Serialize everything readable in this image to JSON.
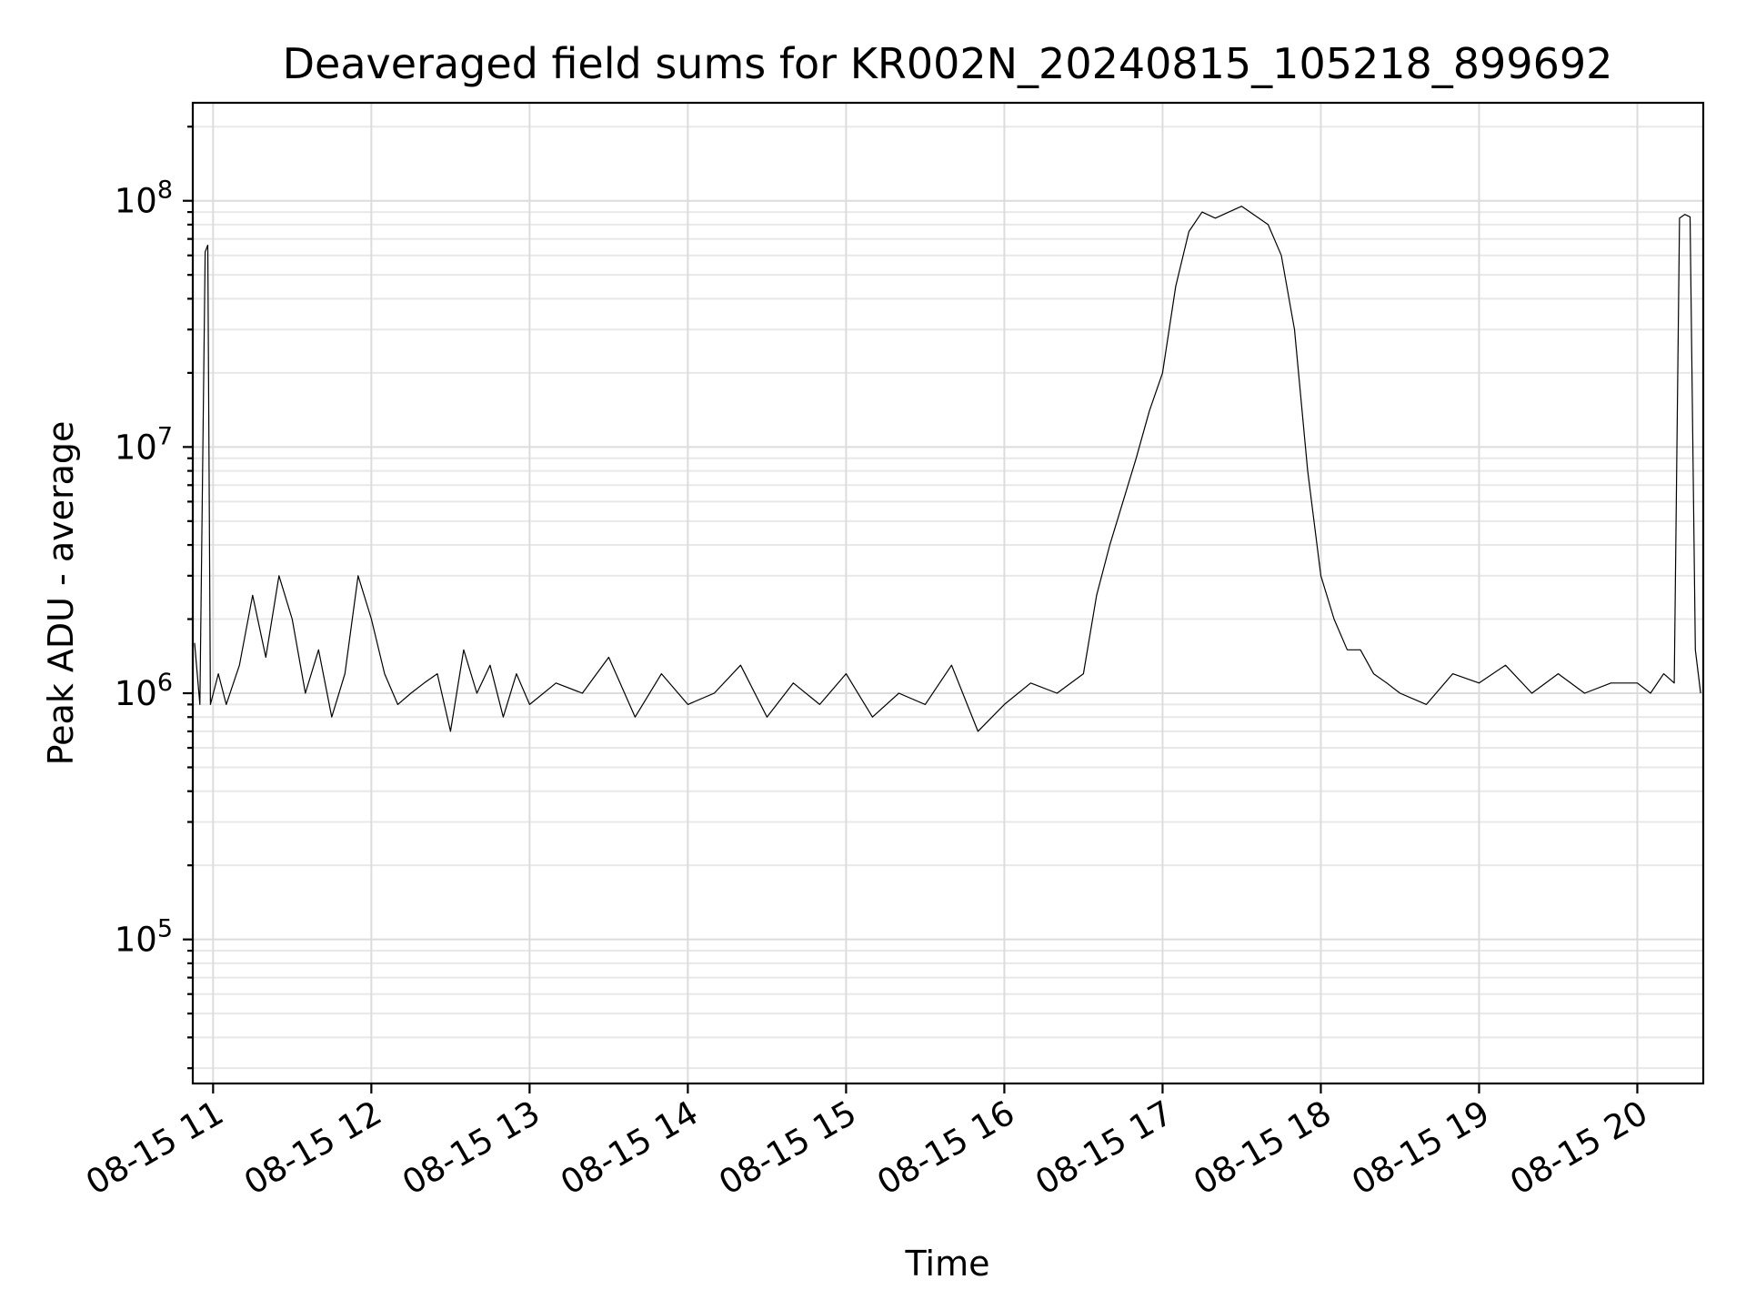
{
  "chart_data": {
    "type": "line",
    "title": "Deaveraged field sums for KR002N_20240815_105218_899692",
    "xlabel": "Time",
    "ylabel": "Peak ADU - average",
    "x_scale": "time",
    "y_scale": "log",
    "xlim": [
      "2024-08-15T10:52:18",
      "2024-08-15T20:25:00"
    ],
    "ylim": [
      26000,
      250000000
    ],
    "x_ticks": [
      {
        "value": "2024-08-15T11:00",
        "label": "08-15 11"
      },
      {
        "value": "2024-08-15T12:00",
        "label": "08-15 12"
      },
      {
        "value": "2024-08-15T13:00",
        "label": "08-15 13"
      },
      {
        "value": "2024-08-15T14:00",
        "label": "08-15 14"
      },
      {
        "value": "2024-08-15T15:00",
        "label": "08-15 15"
      },
      {
        "value": "2024-08-15T16:00",
        "label": "08-15 16"
      },
      {
        "value": "2024-08-15T17:00",
        "label": "08-15 17"
      },
      {
        "value": "2024-08-15T18:00",
        "label": "08-15 18"
      },
      {
        "value": "2024-08-15T19:00",
        "label": "08-15 19"
      },
      {
        "value": "2024-08-15T20:00",
        "label": "08-15 20"
      }
    ],
    "y_ticks": [
      {
        "value": 100000,
        "base": "10",
        "exp": "5"
      },
      {
        "value": 1000000,
        "base": "10",
        "exp": "6"
      },
      {
        "value": 10000000,
        "base": "10",
        "exp": "7"
      },
      {
        "value": 100000000,
        "base": "10",
        "exp": "8"
      }
    ],
    "grid": true,
    "series": [
      {
        "color": "#000000",
        "x": [
          "2024-08-15T10:53",
          "2024-08-15T10:55",
          "2024-08-15T10:57",
          "2024-08-15T10:58",
          "2024-08-15T10:59",
          "2024-08-15T11:02",
          "2024-08-15T11:05",
          "2024-08-15T11:10",
          "2024-08-15T11:15",
          "2024-08-15T11:20",
          "2024-08-15T11:25",
          "2024-08-15T11:30",
          "2024-08-15T11:35",
          "2024-08-15T11:40",
          "2024-08-15T11:45",
          "2024-08-15T11:50",
          "2024-08-15T11:55",
          "2024-08-15T12:00",
          "2024-08-15T12:05",
          "2024-08-15T12:10",
          "2024-08-15T12:15",
          "2024-08-15T12:20",
          "2024-08-15T12:25",
          "2024-08-15T12:30",
          "2024-08-15T12:35",
          "2024-08-15T12:40",
          "2024-08-15T12:45",
          "2024-08-15T12:50",
          "2024-08-15T12:55",
          "2024-08-15T13:00",
          "2024-08-15T13:10",
          "2024-08-15T13:20",
          "2024-08-15T13:30",
          "2024-08-15T13:40",
          "2024-08-15T13:50",
          "2024-08-15T14:00",
          "2024-08-15T14:10",
          "2024-08-15T14:20",
          "2024-08-15T14:30",
          "2024-08-15T14:40",
          "2024-08-15T14:50",
          "2024-08-15T15:00",
          "2024-08-15T15:10",
          "2024-08-15T15:20",
          "2024-08-15T15:30",
          "2024-08-15T15:40",
          "2024-08-15T15:50",
          "2024-08-15T16:00",
          "2024-08-15T16:10",
          "2024-08-15T16:20",
          "2024-08-15T16:30",
          "2024-08-15T16:35",
          "2024-08-15T16:40",
          "2024-08-15T16:45",
          "2024-08-15T16:50",
          "2024-08-15T16:55",
          "2024-08-15T17:00",
          "2024-08-15T17:05",
          "2024-08-15T17:10",
          "2024-08-15T17:15",
          "2024-08-15T17:20",
          "2024-08-15T17:30",
          "2024-08-15T17:40",
          "2024-08-15T17:45",
          "2024-08-15T17:50",
          "2024-08-15T17:55",
          "2024-08-15T18:00",
          "2024-08-15T18:05",
          "2024-08-15T18:10",
          "2024-08-15T18:15",
          "2024-08-15T18:20",
          "2024-08-15T18:25",
          "2024-08-15T18:30",
          "2024-08-15T18:40",
          "2024-08-15T18:50",
          "2024-08-15T19:00",
          "2024-08-15T19:10",
          "2024-08-15T19:20",
          "2024-08-15T19:30",
          "2024-08-15T19:40",
          "2024-08-15T19:50",
          "2024-08-15T20:00",
          "2024-08-15T20:05",
          "2024-08-15T20:10",
          "2024-08-15T20:14",
          "2024-08-15T20:16",
          "2024-08-15T20:18",
          "2024-08-15T20:20",
          "2024-08-15T20:22",
          "2024-08-15T20:24"
        ],
        "y": [
          1600000,
          900000,
          62000000,
          66000000,
          900000,
          1200000,
          900000,
          1300000,
          2500000,
          1400000,
          3000000,
          2000000,
          1000000,
          1500000,
          800000,
          1200000,
          3000000,
          2000000,
          1200000,
          900000,
          1000000,
          1100000,
          1200000,
          700000,
          1500000,
          1000000,
          1300000,
          800000,
          1200000,
          900000,
          1100000,
          1000000,
          1400000,
          800000,
          1200000,
          900000,
          1000000,
          1300000,
          800000,
          1100000,
          900000,
          1200000,
          800000,
          1000000,
          900000,
          1300000,
          700000,
          900000,
          1100000,
          1000000,
          1200000,
          2500000,
          4000000,
          6000000,
          9000000,
          14000000,
          20000000,
          45000000,
          75000000,
          90000000,
          85000000,
          95000000,
          80000000,
          60000000,
          30000000,
          8000000,
          3000000,
          2000000,
          1500000,
          1500000,
          1200000,
          1100000,
          1000000,
          900000,
          1200000,
          1100000,
          1300000,
          1000000,
          1200000,
          1000000,
          1100000,
          1100000,
          1000000,
          1200000,
          1100000,
          85000000,
          88000000,
          86000000,
          1500000,
          1000000
        ]
      }
    ]
  }
}
